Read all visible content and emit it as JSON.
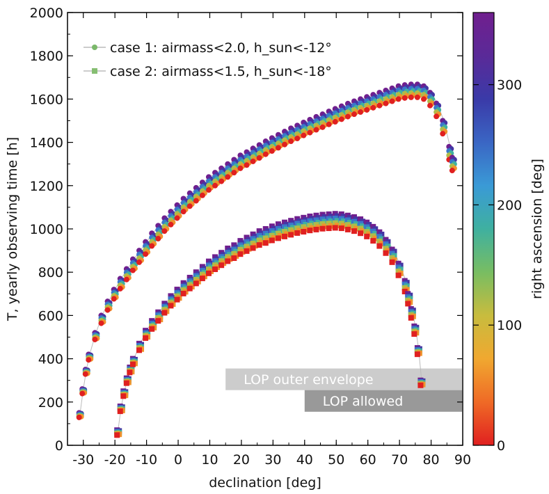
{
  "chart_data": {
    "type": "scatter",
    "xlabel": "declination [deg]",
    "ylabel": "T, yearly observing time [h]",
    "xlim": [
      -35,
      90
    ],
    "ylim": [
      0,
      2000
    ],
    "xticks": [
      -30,
      -20,
      -10,
      0,
      10,
      20,
      30,
      40,
      50,
      60,
      70,
      80,
      90
    ],
    "yticks": [
      0,
      200,
      400,
      600,
      800,
      1000,
      1200,
      1400,
      1600,
      1800,
      2000
    ],
    "grid": false,
    "legend_position": "top-left",
    "colorbar": {
      "label": "right ascension [deg]",
      "range": [
        0,
        360
      ],
      "ticks": [
        0,
        100,
        200,
        300
      ],
      "colormap": [
        "#e02020",
        "#ef6a26",
        "#f0a830",
        "#c8bc3e",
        "#78bd62",
        "#3fb0a0",
        "#3a9ad6",
        "#3a66c4",
        "#3a3aa8",
        "#5a2a98",
        "#701f8e"
      ]
    },
    "series": [
      {
        "name": "case 1: airmass<2.0, h_sun<-12°",
        "marker": "circle",
        "line_color": "#bbbbbb",
        "legend_color": "#7ab86a",
        "ra_spread_hours": 60,
        "x": [
          -31,
          -30,
          -29,
          -28,
          -26,
          -24,
          -22,
          -20,
          -18,
          -16,
          -14,
          -12,
          -10,
          -8,
          -6,
          -4,
          -2,
          0,
          2,
          4,
          6,
          8,
          10,
          12,
          14,
          16,
          18,
          20,
          22,
          24,
          26,
          28,
          30,
          32,
          34,
          36,
          38,
          40,
          42,
          44,
          46,
          48,
          50,
          52,
          54,
          56,
          58,
          60,
          62,
          64,
          66,
          68,
          70,
          72,
          74,
          76,
          78,
          80,
          82,
          84,
          86,
          87
        ],
        "y": [
          150,
          260,
          350,
          420,
          520,
          600,
          665,
          720,
          770,
          815,
          860,
          900,
          940,
          980,
          1015,
          1050,
          1080,
          1110,
          1140,
          1165,
          1190,
          1215,
          1240,
          1260,
          1280,
          1300,
          1320,
          1340,
          1355,
          1372,
          1388,
          1405,
          1420,
          1435,
          1450,
          1465,
          1478,
          1492,
          1505,
          1518,
          1530,
          1543,
          1555,
          1567,
          1579,
          1590,
          1600,
          1610,
          1620,
          1630,
          1640,
          1650,
          1660,
          1665,
          1668,
          1668,
          1660,
          1630,
          1580,
          1500,
          1380,
          1330
        ]
      },
      {
        "name": "case 2: airmass<1.5, h_sun<-18°",
        "marker": "square",
        "line_color": "#bbbbbb",
        "legend_color": "#86be72",
        "ra_spread_hours": 65,
        "x": [
          -19,
          -18,
          -17,
          -16,
          -15,
          -14,
          -12,
          -10,
          -8,
          -6,
          -4,
          -2,
          0,
          2,
          4,
          6,
          8,
          10,
          12,
          14,
          16,
          18,
          20,
          22,
          24,
          26,
          28,
          30,
          32,
          34,
          36,
          38,
          40,
          42,
          44,
          46,
          48,
          50,
          52,
          54,
          56,
          58,
          60,
          62,
          64,
          66,
          68,
          70,
          72,
          73,
          74,
          75,
          76,
          77
        ],
        "y": [
          70,
          180,
          250,
          310,
          360,
          400,
          470,
          530,
          575,
          615,
          655,
          690,
          720,
          750,
          775,
          800,
          825,
          850,
          870,
          890,
          910,
          925,
          945,
          960,
          975,
          990,
          1000,
          1012,
          1022,
          1030,
          1038,
          1046,
          1052,
          1058,
          1062,
          1066,
          1068,
          1070,
          1068,
          1062,
          1055,
          1045,
          1030,
          1010,
          985,
          950,
          905,
          840,
          760,
          700,
          630,
          550,
          450,
          300
        ]
      }
    ],
    "bands": [
      {
        "label": "LOP outer envelope",
        "x0": 15,
        "x1": 90,
        "y0": 255,
        "y1": 355,
        "color": "#cccccc"
      },
      {
        "label": "LOP allowed",
        "x0": 40,
        "x1": 90,
        "y0": 155,
        "y1": 255,
        "color": "#999999"
      }
    ]
  }
}
